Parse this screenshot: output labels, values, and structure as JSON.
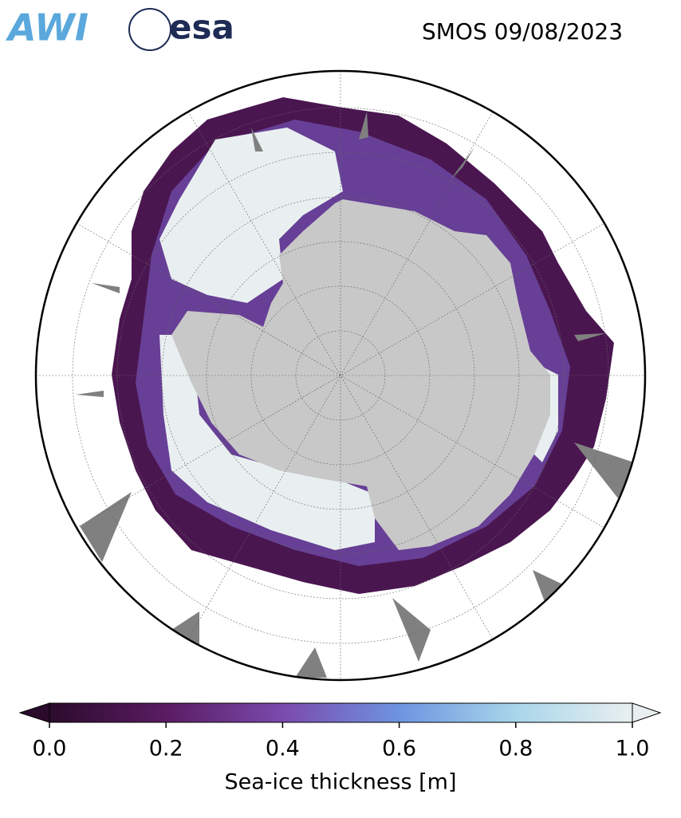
{
  "header": {
    "logo_left": "AWI",
    "logo_right": "esa",
    "title": "SMOS 09/08/2023"
  },
  "colorbar": {
    "lim": [
      0,
      1
    ],
    "ticks": [
      {
        "value": 0,
        "label": "0.0"
      },
      0.2,
      0.4,
      0.6,
      0.8,
      {
        "value": 1,
        "label": "1.0"
      }
    ],
    "colors": [
      "#2b0b2c",
      "#5a1c62",
      "#7a4aad",
      "#6e93e0",
      "#a8d6ea",
      "#e9eff0"
    ],
    "label": "Sea-ice thickness [m]"
  }
}
